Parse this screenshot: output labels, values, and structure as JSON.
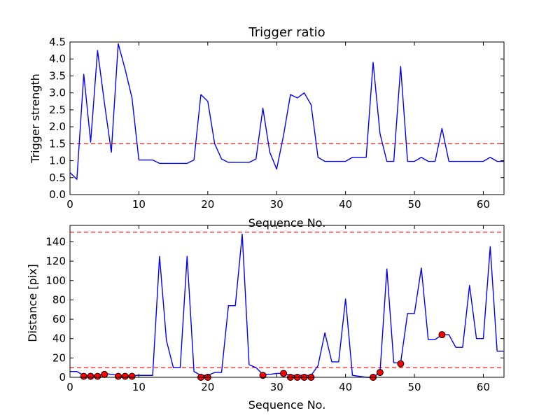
{
  "chart_data": [
    {
      "type": "line",
      "title": "Trigger ratio",
      "xlabel": "Sequence No.",
      "ylabel": "Trigger strength",
      "xlim": [
        0,
        63
      ],
      "ylim": [
        0,
        4.5
      ],
      "xticks": [
        0,
        10,
        20,
        30,
        40,
        50,
        60
      ],
      "yticks": [
        0.0,
        0.5,
        1.0,
        1.5,
        2.0,
        2.5,
        3.0,
        3.5,
        4.0,
        4.5
      ],
      "ytick_labels": [
        "0.0",
        "0.5",
        "1.0",
        "1.5",
        "2.0",
        "2.5",
        "3.0",
        "3.5",
        "4.0",
        "4.5"
      ],
      "grid": false,
      "line_color": "#0000ff",
      "threshold_color": "#ff0000",
      "thresholds": [
        1.5
      ],
      "x": [
        0,
        1,
        2,
        3,
        4,
        5,
        6,
        7,
        8,
        9,
        10,
        11,
        12,
        13,
        14,
        15,
        16,
        17,
        18,
        19,
        20,
        21,
        22,
        23,
        24,
        25,
        26,
        27,
        28,
        29,
        30,
        31,
        32,
        33,
        34,
        35,
        36,
        37,
        38,
        39,
        40,
        41,
        42,
        43,
        44,
        45,
        46,
        47,
        48,
        49,
        50,
        51,
        52,
        53,
        54,
        55,
        56,
        57,
        58,
        59,
        60,
        61,
        62,
        63
      ],
      "series": [
        {
          "values": [
            0.65,
            0.45,
            3.55,
            1.55,
            4.25,
            2.7,
            1.25,
            4.45,
            3.7,
            2.85,
            1.02,
            1.02,
            1.02,
            0.92,
            0.92,
            0.92,
            0.92,
            0.92,
            1.02,
            2.95,
            2.75,
            1.5,
            1.05,
            0.95,
            0.95,
            0.95,
            0.95,
            1.05,
            2.55,
            1.25,
            0.75,
            1.75,
            2.95,
            2.85,
            3.0,
            2.65,
            1.1,
            0.98,
            0.98,
            0.98,
            0.98,
            1.1,
            1.1,
            1.1,
            3.9,
            1.8,
            0.98,
            0.98,
            3.78,
            0.98,
            0.98,
            1.1,
            0.98,
            0.98,
            1.95,
            0.98,
            0.98,
            0.98,
            0.98,
            0.98,
            0.98,
            1.1,
            0.98,
            0.98
          ]
        }
      ]
    },
    {
      "type": "line",
      "title": "",
      "xlabel": "Sequence No.",
      "ylabel": "Distance [pix]",
      "xlim": [
        0,
        63
      ],
      "ylim": [
        0,
        157
      ],
      "xticks": [
        0,
        10,
        20,
        30,
        40,
        50,
        60
      ],
      "yticks": [
        0,
        20,
        40,
        60,
        80,
        100,
        120,
        140
      ],
      "grid": false,
      "line_color": "#0000ff",
      "threshold_color": "#ff0000",
      "marker_color": "#ff0000",
      "thresholds": [
        10,
        150
      ],
      "x": [
        0,
        1,
        2,
        3,
        4,
        5,
        6,
        7,
        8,
        9,
        10,
        11,
        12,
        13,
        14,
        15,
        16,
        17,
        18,
        19,
        20,
        21,
        22,
        23,
        24,
        25,
        26,
        27,
        28,
        29,
        30,
        31,
        32,
        33,
        34,
        35,
        36,
        37,
        38,
        39,
        40,
        41,
        42,
        43,
        44,
        45,
        46,
        47,
        48,
        49,
        50,
        51,
        52,
        53,
        54,
        55,
        56,
        57,
        58,
        59,
        60,
        61,
        62,
        63
      ],
      "series": [
        {
          "values": [
            6,
            6,
            2,
            2,
            2,
            4,
            3,
            2,
            2,
            2,
            2,
            2,
            2,
            125,
            38,
            10,
            10,
            125,
            6,
            2,
            2,
            5,
            5,
            74,
            74,
            148,
            13,
            10,
            3,
            3,
            4,
            4,
            2,
            2,
            2,
            2,
            12,
            46,
            16,
            16,
            81,
            2,
            1,
            0,
            0,
            5,
            112,
            15,
            15,
            66,
            66,
            113,
            39,
            39,
            44,
            44,
            31,
            31,
            95,
            40,
            40,
            135,
            27,
            27
          ]
        }
      ],
      "markers": {
        "x": [
          2,
          3,
          4,
          5,
          7,
          8,
          9,
          19,
          20,
          28,
          31,
          32,
          33,
          34,
          35,
          44,
          45,
          48,
          54
        ],
        "y": [
          1,
          1,
          1,
          3,
          1,
          1,
          1,
          0,
          0,
          2,
          4,
          0,
          0,
          0,
          0,
          0,
          5,
          14,
          44
        ]
      }
    }
  ]
}
